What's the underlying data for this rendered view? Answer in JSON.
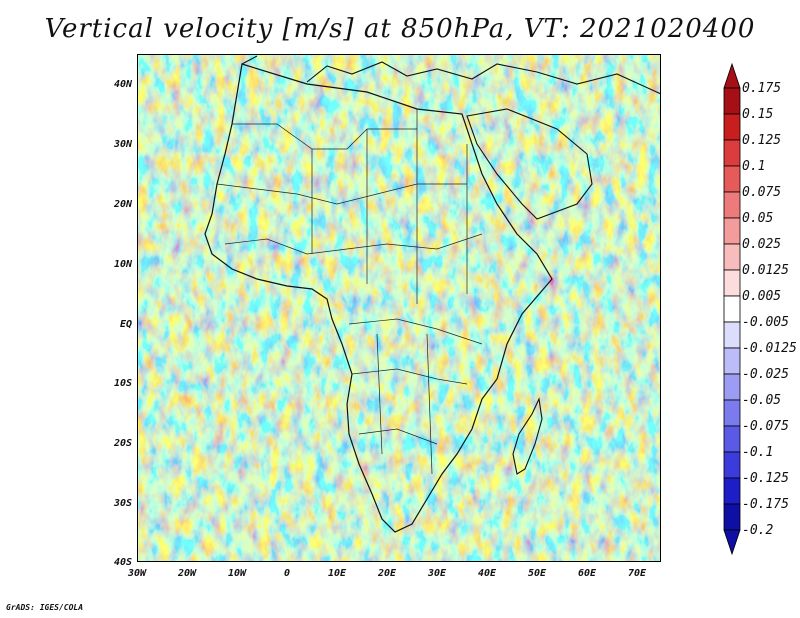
{
  "title": "Vertical velocity [m/s] at 850hPa, VT: 2021020400",
  "lat_labels": [
    "40N",
    "30N",
    "20N",
    "10N",
    "EQ",
    "10S",
    "20S",
    "30S",
    "40S"
  ],
  "lon_labels": [
    "30W",
    "20W",
    "10W",
    "0",
    "10E",
    "20E",
    "30E",
    "40E",
    "50E",
    "60E",
    "70E"
  ],
  "colorbar": {
    "levels": [
      "0.175",
      "0.15",
      "0.125",
      "0.1",
      "0.075",
      "0.05",
      "0.025",
      "0.0125",
      "0.005",
      "-0.005",
      "-0.0125",
      "-0.025",
      "-0.05",
      "-0.075",
      "-0.1",
      "-0.125",
      "-0.175",
      "-0.2"
    ],
    "colors": [
      "#a50f15",
      "#c81e1e",
      "#dc3c3c",
      "#e65a5a",
      "#ee7b7b",
      "#f49c9c",
      "#f9bcbc",
      "#fcdcdc",
      "#ffffff",
      "#dcdcfc",
      "#bcbcf9",
      "#9c9cf4",
      "#7b7bee",
      "#5a5ae6",
      "#3c3cdc",
      "#1e1ec8",
      "#0f0fa5"
    ]
  },
  "credit": "GrADS: IGES/COLA"
}
